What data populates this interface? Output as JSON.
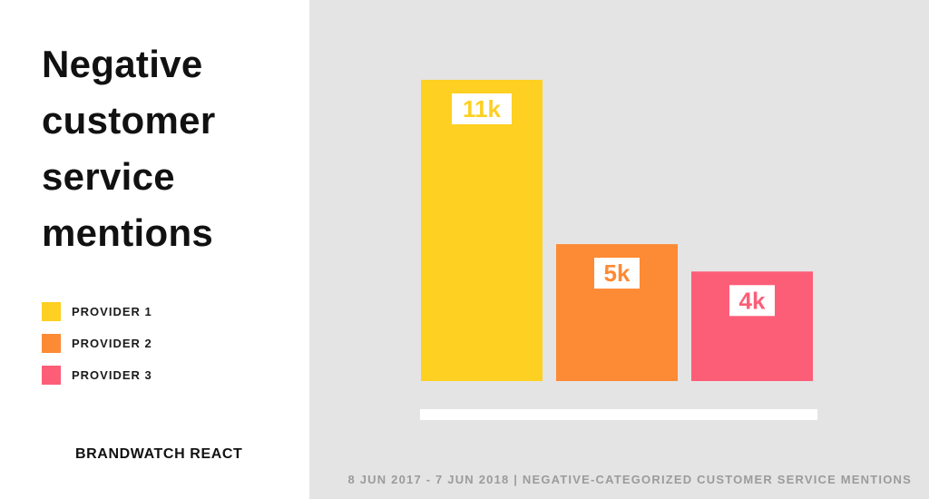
{
  "title": "Negative customer service mentions",
  "brand": "BRANDWATCH REACT",
  "footer": "8 JUN 2017 - 7 JUN 2018 | NEGATIVE-CATEGORIZED CUSTOMER SERVICE MENTIONS",
  "legend": [
    {
      "label": "PROVIDER 1",
      "color": "#fdd022"
    },
    {
      "label": "PROVIDER 2",
      "color": "#fd8a34"
    },
    {
      "label": "PROVIDER 3",
      "color": "#fd5e77"
    }
  ],
  "chart_data": {
    "type": "bar",
    "categories": [
      "PROVIDER 1",
      "PROVIDER 2",
      "PROVIDER 3"
    ],
    "values": [
      11000,
      5000,
      4000
    ],
    "data_labels": [
      "11k",
      "5k",
      "4k"
    ],
    "colors": [
      "#fdd022",
      "#fd8a34",
      "#fd5e77"
    ],
    "ylim": [
      0,
      11000
    ],
    "grid": false,
    "legend_position": "left"
  }
}
